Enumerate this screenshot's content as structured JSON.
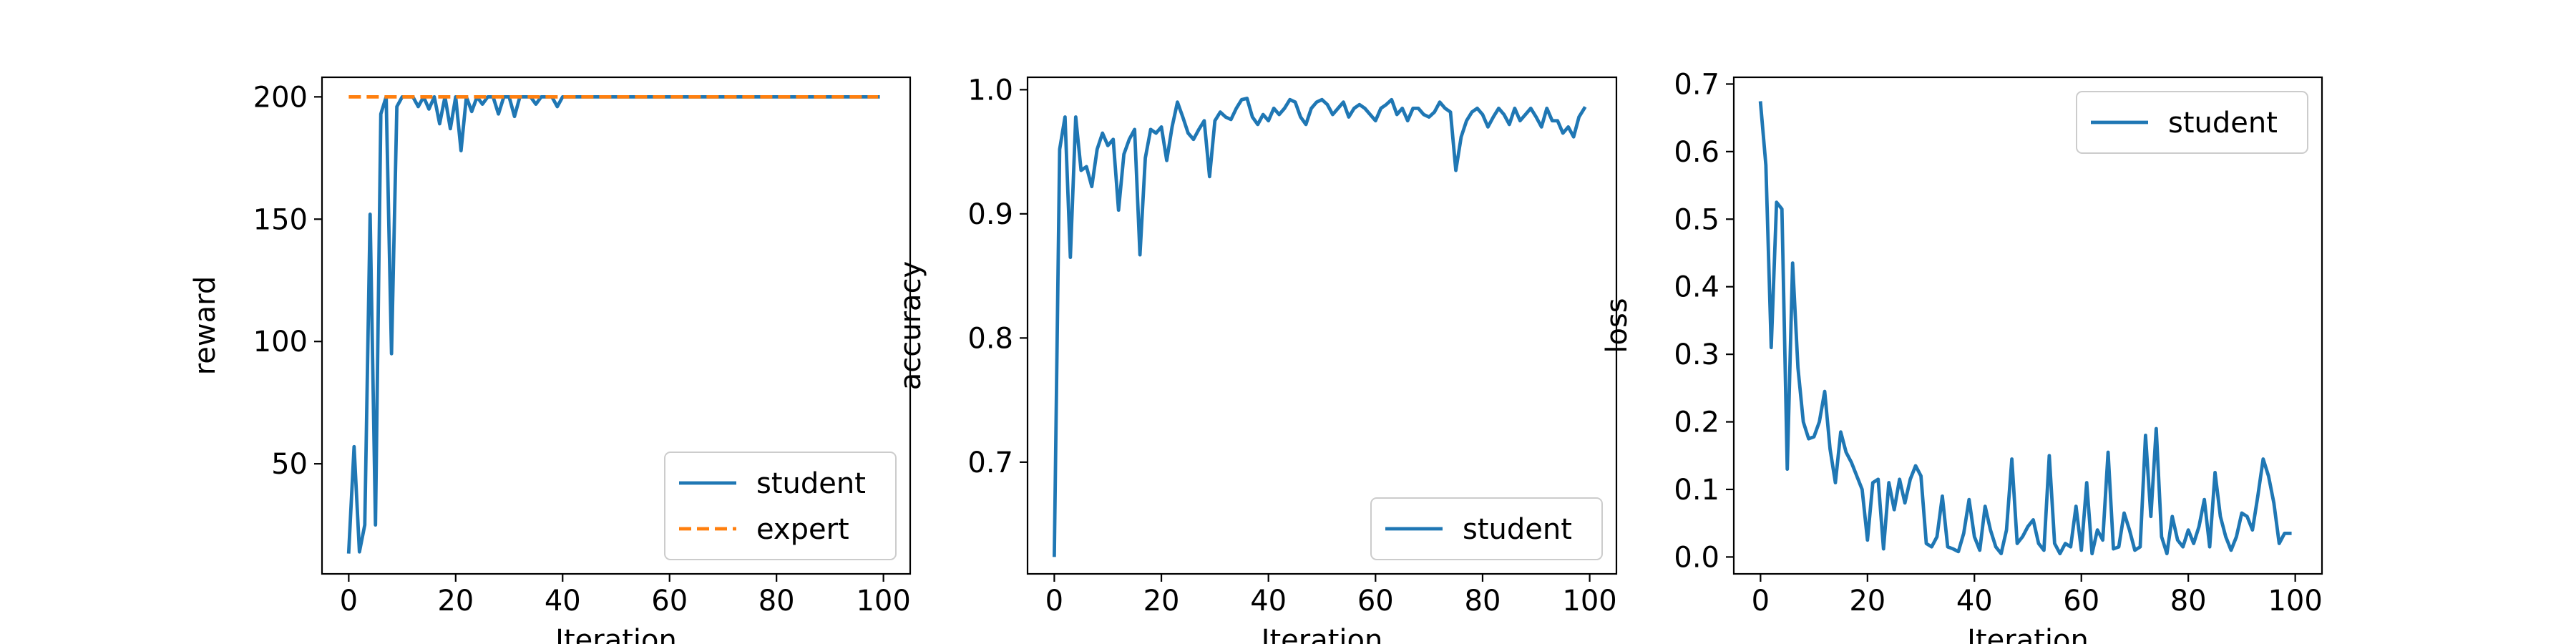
{
  "chart_data": [
    {
      "type": "line",
      "xlabel": "Iteration",
      "ylabel": "reward",
      "xlim": [
        -5,
        105
      ],
      "ylim": [
        5,
        208
      ],
      "xticks": [
        0,
        20,
        40,
        60,
        80,
        100
      ],
      "yticks": [
        50,
        100,
        150,
        200
      ],
      "legend_loc": "lower right",
      "series": [
        {
          "name": "student",
          "color": "#1f77b4",
          "dash": "solid",
          "x": [
            0,
            1,
            2,
            3,
            4,
            5,
            6,
            7,
            8,
            9,
            10,
            11,
            12,
            13,
            14,
            15,
            16,
            17,
            18,
            19,
            20,
            21,
            22,
            23,
            24,
            25,
            26,
            27,
            28,
            29,
            30,
            31,
            32,
            33,
            34,
            35,
            36,
            37,
            38,
            39,
            40,
            41,
            42,
            43,
            44,
            45,
            46,
            47,
            48,
            49,
            50,
            51,
            52,
            53,
            54,
            55,
            56,
            57,
            58,
            59,
            60,
            61,
            62,
            63,
            64,
            65,
            66,
            67,
            68,
            69,
            70,
            71,
            72,
            73,
            74,
            75,
            76,
            77,
            78,
            79,
            80,
            81,
            82,
            83,
            84,
            85,
            86,
            87,
            88,
            89,
            90,
            91,
            92,
            93,
            94,
            95,
            96,
            97,
            98,
            99
          ],
          "values": [
            14,
            57,
            14,
            25,
            152,
            25,
            193,
            200,
            95,
            196,
            200,
            200,
            200,
            196,
            200,
            195,
            200,
            189,
            200,
            187,
            200,
            178,
            200,
            194,
            200,
            197,
            200,
            200,
            193,
            200,
            200,
            192,
            200,
            200,
            200,
            197,
            200,
            200,
            200,
            196,
            200,
            200,
            200,
            200,
            200,
            200,
            200,
            200,
            200,
            200,
            200,
            200,
            200,
            200,
            200,
            200,
            200,
            200,
            200,
            200,
            200,
            200,
            200,
            200,
            200,
            200,
            200,
            200,
            200,
            200,
            200,
            200,
            200,
            200,
            200,
            200,
            200,
            200,
            200,
            200,
            200,
            200,
            200,
            200,
            200,
            200,
            200,
            200,
            200,
            200,
            200,
            200,
            200,
            200,
            200,
            200,
            200,
            200,
            200,
            200
          ]
        },
        {
          "name": "expert",
          "color": "#ff7f0e",
          "dash": "dashed",
          "x": [
            0,
            99
          ],
          "values": [
            200,
            200
          ]
        }
      ]
    },
    {
      "type": "line",
      "xlabel": "Iteration",
      "ylabel": "accuracy",
      "xlim": [
        -5,
        105
      ],
      "ylim": [
        0.61,
        1.01
      ],
      "xticks": [
        0,
        20,
        40,
        60,
        80,
        100
      ],
      "yticks": [
        0.7,
        0.8,
        0.9,
        1.0
      ],
      "legend_loc": "lower right",
      "series": [
        {
          "name": "student",
          "color": "#1f77b4",
          "dash": "solid",
          "x": [
            0,
            1,
            2,
            3,
            4,
            5,
            6,
            7,
            8,
            9,
            10,
            11,
            12,
            13,
            14,
            15,
            16,
            17,
            18,
            19,
            20,
            21,
            22,
            23,
            24,
            25,
            26,
            27,
            28,
            29,
            30,
            31,
            32,
            33,
            34,
            35,
            36,
            37,
            38,
            39,
            40,
            41,
            42,
            43,
            44,
            45,
            46,
            47,
            48,
            49,
            50,
            51,
            52,
            53,
            54,
            55,
            56,
            57,
            58,
            59,
            60,
            61,
            62,
            63,
            64,
            65,
            66,
            67,
            68,
            69,
            70,
            71,
            72,
            73,
            74,
            75,
            76,
            77,
            78,
            79,
            80,
            81,
            82,
            83,
            84,
            85,
            86,
            87,
            88,
            89,
            90,
            91,
            92,
            93,
            94,
            95,
            96,
            97,
            98,
            99
          ],
          "values": [
            0.625,
            0.952,
            0.978,
            0.865,
            0.978,
            0.935,
            0.938,
            0.922,
            0.952,
            0.965,
            0.955,
            0.96,
            0.903,
            0.948,
            0.96,
            0.968,
            0.867,
            0.945,
            0.968,
            0.965,
            0.97,
            0.943,
            0.97,
            0.99,
            0.978,
            0.965,
            0.96,
            0.968,
            0.975,
            0.93,
            0.975,
            0.982,
            0.978,
            0.976,
            0.985,
            0.992,
            0.993,
            0.978,
            0.972,
            0.98,
            0.975,
            0.985,
            0.98,
            0.985,
            0.992,
            0.99,
            0.978,
            0.972,
            0.985,
            0.99,
            0.992,
            0.988,
            0.98,
            0.985,
            0.99,
            0.978,
            0.985,
            0.988,
            0.985,
            0.98,
            0.975,
            0.985,
            0.988,
            0.992,
            0.98,
            0.985,
            0.975,
            0.985,
            0.985,
            0.98,
            0.978,
            0.982,
            0.99,
            0.985,
            0.982,
            0.935,
            0.962,
            0.975,
            0.982,
            0.985,
            0.98,
            0.97,
            0.978,
            0.985,
            0.98,
            0.972,
            0.985,
            0.975,
            0.98,
            0.985,
            0.978,
            0.97,
            0.985,
            0.975,
            0.975,
            0.965,
            0.97,
            0.962,
            0.978,
            0.985
          ]
        }
      ]
    },
    {
      "type": "line",
      "xlabel": "Iteration",
      "ylabel": "loss",
      "xlim": [
        -5,
        105
      ],
      "ylim": [
        -0.025,
        0.71
      ],
      "xticks": [
        0,
        20,
        40,
        60,
        80,
        100
      ],
      "yticks": [
        0.0,
        0.1,
        0.2,
        0.3,
        0.4,
        0.5,
        0.6,
        0.7
      ],
      "legend_loc": "upper right",
      "series": [
        {
          "name": "student",
          "color": "#1f77b4",
          "dash": "solid",
          "x": [
            0,
            1,
            2,
            3,
            4,
            5,
            6,
            7,
            8,
            9,
            10,
            11,
            12,
            13,
            14,
            15,
            16,
            17,
            18,
            19,
            20,
            21,
            22,
            23,
            24,
            25,
            26,
            27,
            28,
            29,
            30,
            31,
            32,
            33,
            34,
            35,
            36,
            37,
            38,
            39,
            40,
            41,
            42,
            43,
            44,
            45,
            46,
            47,
            48,
            49,
            50,
            51,
            52,
            53,
            54,
            55,
            56,
            57,
            58,
            59,
            60,
            61,
            62,
            63,
            64,
            65,
            66,
            67,
            68,
            69,
            70,
            71,
            72,
            73,
            74,
            75,
            76,
            77,
            78,
            79,
            80,
            81,
            82,
            83,
            84,
            85,
            86,
            87,
            88,
            89,
            90,
            91,
            92,
            93,
            94,
            95,
            96,
            97,
            98,
            99
          ],
          "values": [
            0.672,
            0.58,
            0.31,
            0.525,
            0.515,
            0.13,
            0.435,
            0.28,
            0.2,
            0.175,
            0.178,
            0.2,
            0.245,
            0.16,
            0.11,
            0.185,
            0.155,
            0.14,
            0.12,
            0.1,
            0.025,
            0.11,
            0.115,
            0.012,
            0.11,
            0.07,
            0.115,
            0.08,
            0.115,
            0.135,
            0.12,
            0.02,
            0.015,
            0.03,
            0.09,
            0.015,
            0.012,
            0.008,
            0.035,
            0.085,
            0.03,
            0.01,
            0.075,
            0.04,
            0.015,
            0.005,
            0.04,
            0.145,
            0.02,
            0.03,
            0.045,
            0.055,
            0.02,
            0.01,
            0.15,
            0.02,
            0.005,
            0.02,
            0.015,
            0.075,
            0.01,
            0.11,
            0.005,
            0.04,
            0.025,
            0.155,
            0.012,
            0.015,
            0.065,
            0.04,
            0.01,
            0.015,
            0.18,
            0.06,
            0.19,
            0.03,
            0.005,
            0.06,
            0.025,
            0.015,
            0.04,
            0.02,
            0.045,
            0.085,
            0.015,
            0.125,
            0.06,
            0.03,
            0.01,
            0.03,
            0.065,
            0.06,
            0.04,
            0.09,
            0.145,
            0.12,
            0.08,
            0.02,
            0.035,
            0.035
          ]
        }
      ]
    }
  ]
}
